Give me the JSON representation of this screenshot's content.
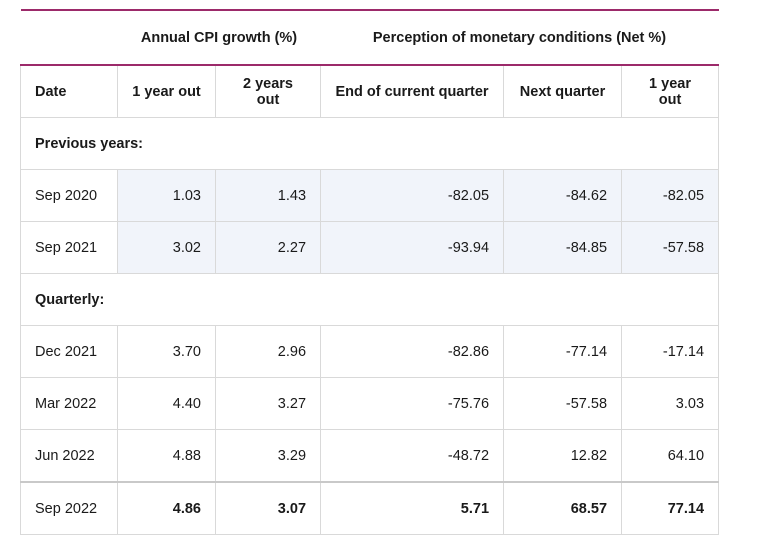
{
  "group_headers": {
    "cpi": "Annual CPI growth (%)",
    "monetary": "Perception of monetary conditions (Net %)"
  },
  "columns": [
    "Date",
    "1 year out",
    "2 years out",
    "End of current quarter",
    "Next quarter",
    "1 year out"
  ],
  "sections": {
    "previous": "Previous years:",
    "quarterly": "Quarterly:"
  },
  "rows_previous": [
    {
      "date": "Sep 2020",
      "cpi_1y": "1.03",
      "cpi_2y": "1.43",
      "mc_end": "-82.05",
      "mc_next": "-84.62",
      "mc_1y": "-82.05"
    },
    {
      "date": "Sep 2021",
      "cpi_1y": "3.02",
      "cpi_2y": "2.27",
      "mc_end": "-93.94",
      "mc_next": "-84.85",
      "mc_1y": "-57.58"
    }
  ],
  "rows_quarterly": [
    {
      "date": "Dec 2021",
      "cpi_1y": "3.70",
      "cpi_2y": "2.96",
      "mc_end": "-82.86",
      "mc_next": "-77.14",
      "mc_1y": "-17.14"
    },
    {
      "date": "Mar 2022",
      "cpi_1y": "4.40",
      "cpi_2y": "3.27",
      "mc_end": "-75.76",
      "mc_next": "-57.58",
      "mc_1y": "3.03"
    },
    {
      "date": "Jun 2022",
      "cpi_1y": "4.88",
      "cpi_2y": "3.29",
      "mc_end": "-48.72",
      "mc_next": "12.82",
      "mc_1y": "64.10"
    }
  ],
  "row_latest": {
    "date": "Sep 2022",
    "cpi_1y": "4.86",
    "cpi_2y": "3.07",
    "mc_end": "5.71",
    "mc_next": "68.57",
    "mc_1y": "77.14"
  },
  "colors": {
    "accent": "#9c2a6a",
    "shade": "#f1f4fa"
  }
}
